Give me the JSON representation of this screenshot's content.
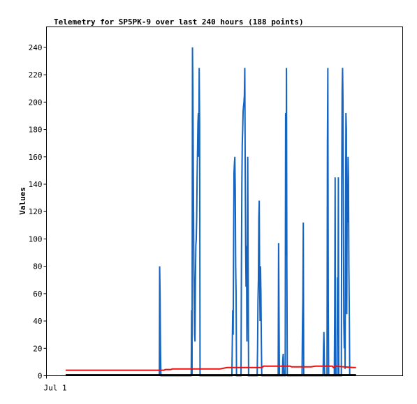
{
  "chart_data": {
    "type": "line",
    "title": "Telemetry for SP5PK-9 over last 240 hours (188 points)",
    "xlabel": "",
    "ylabel": "Values",
    "ylim": [
      0,
      255
    ],
    "xlim": [
      0,
      240
    ],
    "x_ticks": [
      {
        "x": 0,
        "label": "Jul 1"
      }
    ],
    "y_ticks": [
      0,
      20,
      40,
      60,
      80,
      100,
      120,
      140,
      160,
      180,
      200,
      220,
      240
    ],
    "grid": false,
    "legend": "none",
    "colors": {
      "series_blue": "#1565c0",
      "series_red": "#e81010",
      "series_black": "#000000",
      "frame": "#000000",
      "background": "#ffffff"
    },
    "series": [
      {
        "color": "#1565c0",
        "points": [
          [
            66.8,
            0
          ],
          [
            67.0,
            80
          ],
          [
            67.3,
            60
          ],
          [
            67.6,
            20
          ],
          [
            67.9,
            0
          ],
          [
            89.5,
            0
          ],
          [
            89.8,
            48
          ],
          [
            90.1,
            0
          ],
          [
            90.4,
            240
          ],
          [
            90.7,
            210
          ],
          [
            91.0,
            150
          ],
          [
            91.3,
            95
          ],
          [
            91.6,
            60
          ],
          [
            91.9,
            30
          ],
          [
            92.2,
            25
          ],
          [
            92.5,
            70
          ],
          [
            92.8,
            95
          ],
          [
            93.1,
            100
          ],
          [
            93.4,
            115
          ],
          [
            93.7,
            145
          ],
          [
            94.0,
            165
          ],
          [
            94.3,
            185
          ],
          [
            94.6,
            192
          ],
          [
            94.9,
            160
          ],
          [
            95.2,
            225
          ],
          [
            95.5,
            185
          ],
          [
            95.8,
            0
          ],
          [
            118.5,
            0
          ],
          [
            118.8,
            25
          ],
          [
            119.1,
            48
          ],
          [
            119.4,
            30
          ],
          [
            119.7,
            95
          ],
          [
            120.0,
            148
          ],
          [
            120.3,
            155
          ],
          [
            120.6,
            160
          ],
          [
            120.9,
            135
          ],
          [
            121.2,
            80
          ],
          [
            121.5,
            60
          ],
          [
            121.8,
            0
          ],
          [
            125.0,
            0
          ],
          [
            125.3,
            80
          ],
          [
            125.6,
            140
          ],
          [
            125.9,
            170
          ],
          [
            126.2,
            180
          ],
          [
            126.5,
            193
          ],
          [
            126.8,
            197
          ],
          [
            127.1,
            200
          ],
          [
            127.4,
            205
          ],
          [
            127.7,
            225
          ],
          [
            128.0,
            150
          ],
          [
            128.3,
            95
          ],
          [
            128.6,
            65
          ],
          [
            128.9,
            95
          ],
          [
            129.2,
            25
          ],
          [
            129.5,
            90
          ],
          [
            129.8,
            160
          ],
          [
            130.1,
            80
          ],
          [
            130.4,
            0
          ],
          [
            136.5,
            0
          ],
          [
            136.8,
            20
          ],
          [
            137.1,
            55
          ],
          [
            137.4,
            70
          ],
          [
            137.7,
            115
          ],
          [
            138.0,
            128
          ],
          [
            138.3,
            65
          ],
          [
            138.6,
            40
          ],
          [
            138.9,
            80
          ],
          [
            139.2,
            60
          ],
          [
            139.5,
            25
          ],
          [
            139.8,
            0
          ],
          [
            151.5,
            0
          ],
          [
            151.8,
            97
          ],
          [
            152.1,
            45
          ],
          [
            152.4,
            0
          ],
          [
            154.5,
            0
          ],
          [
            154.8,
            12
          ],
          [
            155.1,
            16
          ],
          [
            155.4,
            5
          ],
          [
            155.7,
            0
          ],
          [
            156.5,
            0
          ],
          [
            156.8,
            192
          ],
          [
            157.1,
            88
          ],
          [
            157.4,
            225
          ],
          [
            157.7,
            80
          ],
          [
            158.0,
            0
          ],
          [
            168.5,
            0
          ],
          [
            168.8,
            35
          ],
          [
            169.1,
            56
          ],
          [
            169.4,
            112
          ],
          [
            169.7,
            0
          ],
          [
            183.5,
            0
          ],
          [
            183.8,
            20
          ],
          [
            184.1,
            32
          ],
          [
            184.4,
            10
          ],
          [
            184.7,
            0
          ],
          [
            186.3,
            0
          ],
          [
            186.6,
            168
          ],
          [
            186.9,
            225
          ],
          [
            187.2,
            56
          ],
          [
            187.5,
            0
          ],
          [
            191.5,
            0
          ],
          [
            191.8,
            50
          ],
          [
            192.1,
            145
          ],
          [
            192.4,
            0
          ],
          [
            193.5,
            0
          ],
          [
            193.8,
            72
          ],
          [
            194.1,
            30
          ],
          [
            194.4,
            145
          ],
          [
            194.7,
            0
          ],
          [
            196.5,
            0
          ],
          [
            196.8,
            140
          ],
          [
            197.1,
            208
          ],
          [
            197.4,
            225
          ],
          [
            197.7,
            200
          ],
          [
            198.0,
            110
          ],
          [
            198.3,
            40
          ],
          [
            198.6,
            20
          ],
          [
            198.9,
            40
          ],
          [
            199.2,
            5
          ],
          [
            199.5,
            95
          ],
          [
            199.8,
            192
          ],
          [
            200.1,
            180
          ],
          [
            200.4,
            45
          ],
          [
            200.7,
            132
          ],
          [
            201.0,
            112
          ],
          [
            201.3,
            160
          ],
          [
            201.6,
            145
          ],
          [
            201.9,
            80
          ],
          [
            202.2,
            48
          ],
          [
            202.5,
            0
          ]
        ]
      },
      {
        "color": "#e81010",
        "points": [
          [
            0,
            4
          ],
          [
            70,
            4
          ],
          [
            71,
            4.5
          ],
          [
            75,
            4.5
          ],
          [
            76,
            5
          ],
          [
            85,
            5
          ],
          [
            86,
            5
          ],
          [
            110,
            5
          ],
          [
            115,
            6
          ],
          [
            140,
            6
          ],
          [
            141,
            7
          ],
          [
            160,
            7
          ],
          [
            161,
            6.5
          ],
          [
            175,
            6.5
          ],
          [
            178,
            7
          ],
          [
            190,
            7
          ],
          [
            191,
            6
          ],
          [
            192,
            7
          ],
          [
            205,
            6
          ],
          [
            207,
            6
          ]
        ]
      },
      {
        "color": "#000000",
        "points": [
          [
            0,
            0.7
          ],
          [
            207,
            0.7
          ]
        ]
      }
    ]
  }
}
